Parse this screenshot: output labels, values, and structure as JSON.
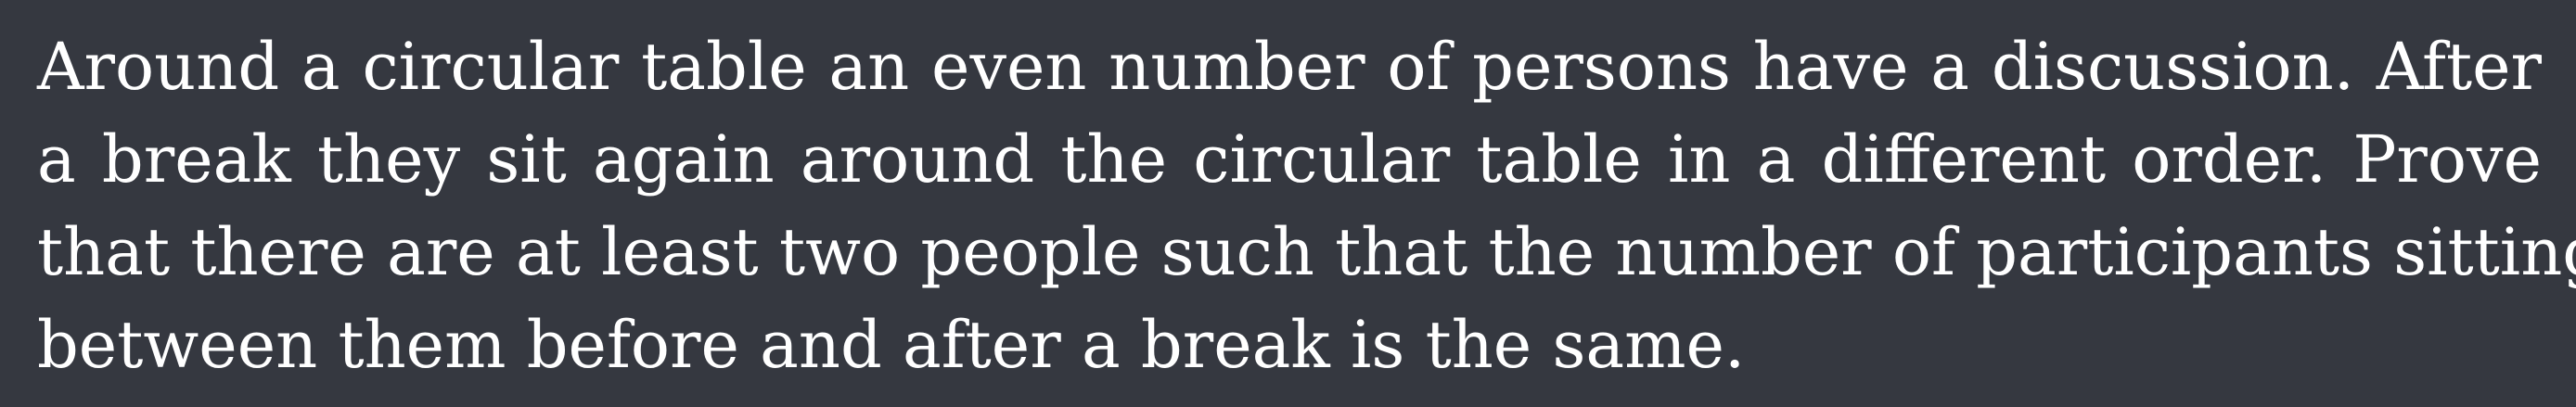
{
  "problem": {
    "lines": [
      "Around a circular table an even number of persons have a discussion. After",
      "a break they sit again around the circular table in a different order. Prove",
      "that there are at least two people such that the number of participants sitting",
      "between them before and after a break is the same."
    ]
  },
  "colors": {
    "background": "#353840",
    "text": "#ffffff"
  }
}
